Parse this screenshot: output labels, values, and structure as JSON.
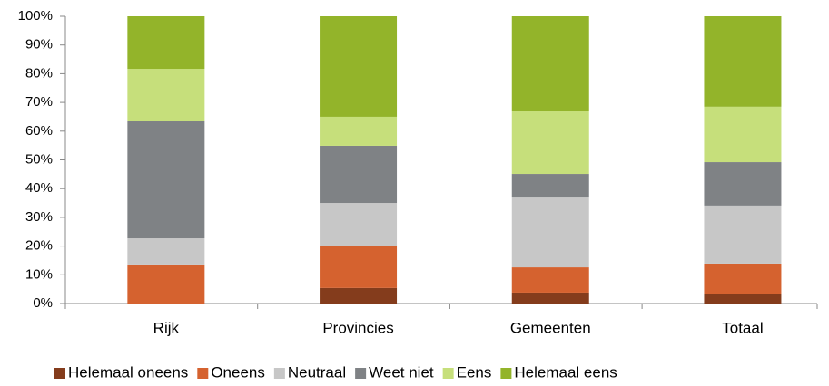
{
  "chart_data": {
    "type": "stacked_bar",
    "categories": [
      "Rijk",
      "Provincies",
      "Gemeenten",
      "Totaal"
    ],
    "series": [
      {
        "name": "Helemaal oneens",
        "color": "#843c1c",
        "values": [
          0,
          5.4,
          3.8,
          3.2
        ]
      },
      {
        "name": "Oneens",
        "color": "#d5622f",
        "values": [
          13.6,
          14.5,
          8.8,
          10.7
        ]
      },
      {
        "name": "Neutraal",
        "color": "#c7c7c7",
        "values": [
          9.1,
          15.1,
          24.6,
          20.2
        ]
      },
      {
        "name": "Weet niet",
        "color": "#7f8285",
        "values": [
          41,
          19.9,
          7.9,
          15.1
        ]
      },
      {
        "name": "Eens",
        "color": "#c6df7b",
        "values": [
          18,
          10.1,
          21.8,
          19.3
        ]
      },
      {
        "name": "Helemaal eens",
        "color": "#93b42a",
        "values": [
          18.3,
          35,
          33.1,
          31.5
        ]
      }
    ],
    "ylim": [
      0,
      100
    ],
    "yticks": [
      {
        "value": 0,
        "label": "0%"
      },
      {
        "value": 10,
        "label": "10%"
      },
      {
        "value": 20,
        "label": "20%"
      },
      {
        "value": 30,
        "label": "30%"
      },
      {
        "value": 40,
        "label": "40%"
      },
      {
        "value": 50,
        "label": "50%"
      },
      {
        "value": 60,
        "label": "60%"
      },
      {
        "value": 70,
        "label": "70%"
      },
      {
        "value": 80,
        "label": "80%"
      },
      {
        "value": 90,
        "label": "90%"
      },
      {
        "value": 100,
        "label": "100%"
      }
    ],
    "legend": "bottom"
  }
}
